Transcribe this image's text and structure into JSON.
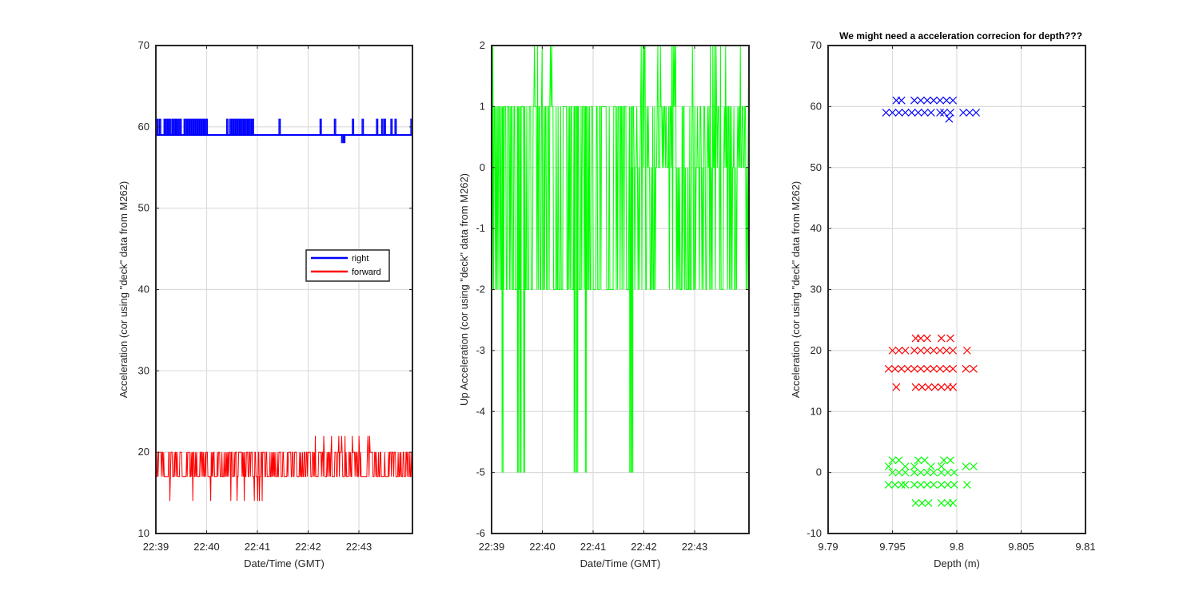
{
  "chart_data": [
    {
      "type": "line",
      "title": "",
      "xlabel": "Date/Time (GMT)",
      "ylabel": "Acceleration (cor using \"deck\" data from M262)",
      "x_ticks": [
        "22:39",
        "22:40",
        "22:41",
        "22:42",
        "22:43"
      ],
      "x_range_minutes": [
        0,
        5.0
      ],
      "ylim": [
        10,
        70
      ],
      "y_ticks": [
        10,
        20,
        30,
        40,
        50,
        60,
        70
      ],
      "grid": true,
      "legend": {
        "position": "center-right",
        "entries": [
          "right",
          "forward"
        ]
      },
      "series": [
        {
          "name": "right",
          "color": "#0000ff",
          "baseline": 59,
          "levels": [
            58,
            59,
            61
          ],
          "spikes": [
            {
              "x": 0.02,
              "y": 61
            },
            {
              "x": 0.07,
              "y": 61
            },
            {
              "x": 0.16,
              "y": 61
            },
            {
              "x": 0.2,
              "y": 61
            },
            {
              "x": 0.24,
              "y": 61
            },
            {
              "x": 0.27,
              "y": 61
            },
            {
              "x": 0.32,
              "y": 61
            },
            {
              "x": 0.36,
              "y": 61
            },
            {
              "x": 0.4,
              "y": 61
            },
            {
              "x": 0.44,
              "y": 61
            },
            {
              "x": 0.47,
              "y": 61
            },
            {
              "x": 0.55,
              "y": 61
            },
            {
              "x": 0.58,
              "y": 61
            },
            {
              "x": 0.62,
              "y": 61
            },
            {
              "x": 0.66,
              "y": 61
            },
            {
              "x": 0.7,
              "y": 61
            },
            {
              "x": 0.74,
              "y": 61
            },
            {
              "x": 0.78,
              "y": 61
            },
            {
              "x": 0.82,
              "y": 61
            },
            {
              "x": 0.86,
              "y": 61
            },
            {
              "x": 0.9,
              "y": 61
            },
            {
              "x": 0.94,
              "y": 61
            },
            {
              "x": 0.98,
              "y": 61
            },
            {
              "x": 1.38,
              "y": 61
            },
            {
              "x": 1.44,
              "y": 61
            },
            {
              "x": 1.48,
              "y": 61
            },
            {
              "x": 1.52,
              "y": 61
            },
            {
              "x": 1.56,
              "y": 61
            },
            {
              "x": 1.6,
              "y": 61
            },
            {
              "x": 1.64,
              "y": 61
            },
            {
              "x": 1.68,
              "y": 61
            },
            {
              "x": 1.72,
              "y": 61
            },
            {
              "x": 1.76,
              "y": 61
            },
            {
              "x": 1.8,
              "y": 61
            },
            {
              "x": 1.84,
              "y": 61
            },
            {
              "x": 1.88,
              "y": 61
            },
            {
              "x": 2.4,
              "y": 61
            },
            {
              "x": 3.2,
              "y": 61
            },
            {
              "x": 3.48,
              "y": 61
            },
            {
              "x": 3.62,
              "y": 58
            },
            {
              "x": 3.66,
              "y": 58
            },
            {
              "x": 3.83,
              "y": 61
            },
            {
              "x": 4.02,
              "y": 61
            },
            {
              "x": 4.3,
              "y": 61
            },
            {
              "x": 4.4,
              "y": 61
            },
            {
              "x": 4.45,
              "y": 61
            },
            {
              "x": 4.58,
              "y": 61
            },
            {
              "x": 4.66,
              "y": 61
            },
            {
              "x": 4.97,
              "y": 61
            }
          ]
        },
        {
          "name": "forward",
          "color": "#ff0000",
          "levels": [
            14,
            17,
            20,
            22
          ],
          "segments": [
            {
              "x_range": [
                0.0,
                2.3
              ],
              "levels": [
                14,
                17,
                20
              ]
            },
            {
              "x_range": [
                2.3,
                5.0
              ],
              "levels": [
                17,
                20,
                22
              ]
            }
          ]
        }
      ]
    },
    {
      "type": "line",
      "title": "",
      "xlabel": "Date/Time (GMT)",
      "ylabel": "Up Acceleration (cor using \"deck\" data from M262)",
      "x_ticks": [
        "22:39",
        "22:40",
        "22:41",
        "22:42",
        "22:43"
      ],
      "x_range_minutes": [
        0,
        5.0
      ],
      "ylim": [
        -6,
        2
      ],
      "y_ticks": [
        -6,
        -5,
        -4,
        -3,
        -2,
        -1,
        0,
        1,
        2
      ],
      "grid": true,
      "series": [
        {
          "color": "#00ff00",
          "levels": [
            -5,
            -2,
            0,
            1,
            2
          ],
          "segments": [
            {
              "x_range": [
                0.0,
                2.65
              ],
              "levels": [
                -2,
                1
              ]
            },
            {
              "x_range": [
                2.65,
                5.0
              ],
              "levels": [
                -2,
                0,
                1,
                2
              ]
            }
          ],
          "dips_to_minus5": [
            0.2,
            0.5,
            0.55,
            0.62,
            1.6,
            1.65,
            1.82,
            2.68,
            2.72
          ]
        }
      ]
    },
    {
      "type": "scatter",
      "title": "We might need a acceleration correcion for depth???",
      "xlabel": "Depth (m)",
      "ylabel": "Acceleration (cor using \"deck\" data from M262)",
      "xlim": [
        9.79,
        9.81
      ],
      "x_ticks": [
        9.79,
        9.795,
        9.8,
        9.805,
        9.81
      ],
      "ylim": [
        -10,
        70
      ],
      "y_ticks": [
        -10,
        0,
        10,
        20,
        30,
        40,
        50,
        60,
        70
      ],
      "grid": true,
      "marker": "x",
      "series": [
        {
          "color": "#0000ff",
          "points": [
            [
              9.7945,
              59
            ],
            [
              9.795,
              59
            ],
            [
              9.7955,
              59
            ],
            [
              9.796,
              59
            ],
            [
              9.7953,
              61
            ],
            [
              9.7957,
              61
            ],
            [
              9.7965,
              59
            ],
            [
              9.797,
              59
            ],
            [
              9.7975,
              59
            ],
            [
              9.798,
              59
            ],
            [
              9.7967,
              61
            ],
            [
              9.7972,
              61
            ],
            [
              9.7977,
              61
            ],
            [
              9.7982,
              61
            ],
            [
              9.7987,
              59
            ],
            [
              9.799,
              59
            ],
            [
              9.7995,
              59
            ],
            [
              9.7987,
              61
            ],
            [
              9.7992,
              61
            ],
            [
              9.7997,
              61
            ],
            [
              9.7994,
              58
            ],
            [
              9.8005,
              59
            ],
            [
              9.801,
              59
            ],
            [
              9.8015,
              59
            ]
          ]
        },
        {
          "color": "#ff0000",
          "points": [
            [
              9.795,
              20
            ],
            [
              9.7955,
              20
            ],
            [
              9.796,
              20
            ],
            [
              9.7967,
              20
            ],
            [
              9.7972,
              20
            ],
            [
              9.7977,
              20
            ],
            [
              9.7982,
              20
            ],
            [
              9.7987,
              20
            ],
            [
              9.7992,
              20
            ],
            [
              9.7997,
              20
            ],
            [
              9.8008,
              20
            ],
            [
              9.7968,
              22
            ],
            [
              9.7972,
              22
            ],
            [
              9.7977,
              22
            ],
            [
              9.7988,
              22
            ],
            [
              9.7995,
              22
            ],
            [
              9.7947,
              17
            ],
            [
              9.7952,
              17
            ],
            [
              9.7957,
              17
            ],
            [
              9.7962,
              17
            ],
            [
              9.7967,
              17
            ],
            [
              9.7972,
              17
            ],
            [
              9.7977,
              17
            ],
            [
              9.7982,
              17
            ],
            [
              9.7987,
              17
            ],
            [
              9.7992,
              17
            ],
            [
              9.7997,
              17
            ],
            [
              9.8007,
              17
            ],
            [
              9.8013,
              17
            ],
            [
              9.7953,
              14
            ],
            [
              9.7968,
              14
            ],
            [
              9.7973,
              14
            ],
            [
              9.7978,
              14
            ],
            [
              9.7983,
              14
            ],
            [
              9.7988,
              14
            ],
            [
              9.7993,
              14
            ],
            [
              9.7997,
              14
            ]
          ]
        },
        {
          "color": "#00ff00",
          "points": [
            [
              9.7947,
              1
            ],
            [
              9.795,
              2
            ],
            [
              9.7955,
              2
            ],
            [
              9.796,
              1
            ],
            [
              9.7967,
              1
            ],
            [
              9.797,
              2
            ],
            [
              9.7975,
              2
            ],
            [
              9.798,
              1
            ],
            [
              9.7988,
              1
            ],
            [
              9.799,
              2
            ],
            [
              9.7995,
              2
            ],
            [
              9.8007,
              1
            ],
            [
              9.8013,
              1
            ],
            [
              9.795,
              0
            ],
            [
              9.7955,
              0
            ],
            [
              9.796,
              0
            ],
            [
              9.7967,
              0
            ],
            [
              9.7972,
              0
            ],
            [
              9.7977,
              0
            ],
            [
              9.7982,
              0
            ],
            [
              9.7988,
              0
            ],
            [
              9.7993,
              0
            ],
            [
              9.7998,
              0
            ],
            [
              9.7947,
              -2
            ],
            [
              9.7952,
              -2
            ],
            [
              9.7957,
              -2
            ],
            [
              9.796,
              -2
            ],
            [
              9.7967,
              -2
            ],
            [
              9.7972,
              -2
            ],
            [
              9.7977,
              -2
            ],
            [
              9.7982,
              -2
            ],
            [
              9.7988,
              -2
            ],
            [
              9.7993,
              -2
            ],
            [
              9.7998,
              -2
            ],
            [
              9.8008,
              -2
            ],
            [
              9.7968,
              -5
            ],
            [
              9.7973,
              -5
            ],
            [
              9.7978,
              -5
            ],
            [
              9.7988,
              -5
            ],
            [
              9.7993,
              -5
            ],
            [
              9.7997,
              -5
            ]
          ]
        }
      ]
    }
  ]
}
